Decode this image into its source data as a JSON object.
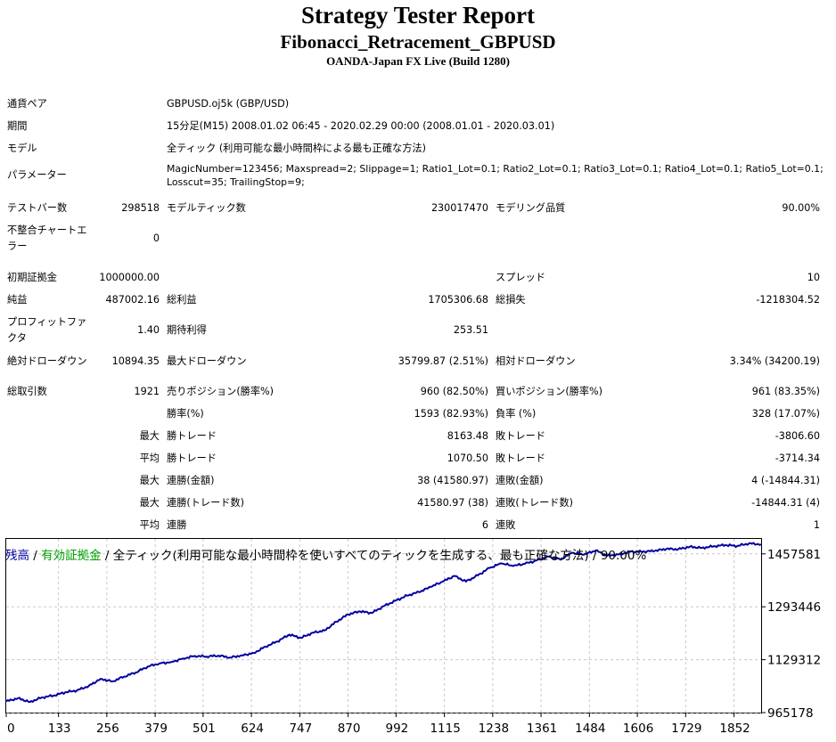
{
  "header": {
    "title": "Strategy Tester Report",
    "ea_name": "Fibonacci_Retracement_GBPUSD",
    "server": "OANDA-Japan FX Live (Build 1280)"
  },
  "settings": {
    "symbol": {
      "label": "通貨ペア",
      "value": "GBPUSD.oj5k (GBP/USD)"
    },
    "period": {
      "label": "期間",
      "value": "15分足(M15) 2008.01.02 06:45 - 2020.02.29 00:00 (2008.01.01 - 2020.03.01)"
    },
    "model": {
      "label": "モデル",
      "value": "全ティック (利用可能な最小時間枠による最も正確な方法)"
    },
    "parameters": {
      "label": "パラメーター",
      "line1": "MagicNumber=123456; Maxspread=2; Slippage=1; Ratio1_Lot=0.1; Ratio2_Lot=0.1; Ratio3_Lot=0.1; Ratio4_Lot=0.1; Ratio5_Lot=0.1;",
      "line2": "Losscut=35; TrailingStop=9;"
    }
  },
  "stats": {
    "bars": {
      "label": "テストバー数",
      "value": "298518"
    },
    "ticks": {
      "label": "モデルティック数",
      "value": "230017470"
    },
    "quality": {
      "label": "モデリング品質",
      "value": "90.00%"
    },
    "mismatch": {
      "label1": "不整合チャートエ",
      "label2": "ラー",
      "value": "0"
    },
    "deposit": {
      "label": "初期証拠金",
      "value": "1000000.00"
    },
    "spread": {
      "label": "スプレッド",
      "value": "10"
    },
    "net_profit": {
      "label": "純益",
      "value": "487002.16"
    },
    "gross_profit": {
      "label": "総利益",
      "value": "1705306.68"
    },
    "gross_loss": {
      "label": "総損失",
      "value": "-1218304.52"
    },
    "profit_factor": {
      "label1": "プロフィットファ",
      "label2": "クタ",
      "value": "1.40"
    },
    "expected_payoff": {
      "label": "期待利得",
      "value": "253.51"
    },
    "abs_drawdown": {
      "label": "絶対ドローダウン",
      "value": "10894.35"
    },
    "max_drawdown": {
      "label": "最大ドローダウン",
      "value": "35799.87 (2.51%)"
    },
    "rel_drawdown": {
      "label": "相対ドローダウン",
      "value": "3.34% (34200.19)"
    },
    "total_trades": {
      "label": "総取引数",
      "value": "1921"
    },
    "short_positions": {
      "label": "売りポジション(勝率%)",
      "value": "960 (82.50%)"
    },
    "long_positions": {
      "label": "買いポジション(勝率%)",
      "value": "961 (83.35%)"
    },
    "profit_trades": {
      "label": "勝率(%)",
      "value": "1593 (82.93%)"
    },
    "loss_trades": {
      "label": "負率 (%)",
      "value": "328 (17.07%)"
    },
    "largest_profit": {
      "prefix": "最大",
      "label": "勝トレード",
      "value": "8163.48"
    },
    "largest_loss": {
      "label": "敗トレード",
      "value": "-3806.60"
    },
    "average_profit": {
      "prefix": "平均",
      "label": "勝トレード",
      "value": "1070.50"
    },
    "average_loss": {
      "label": "敗トレード",
      "value": "-3714.34"
    },
    "max_consec_wins": {
      "prefix": "最大",
      "label": "連勝(金額)",
      "value": "38 (41580.97)"
    },
    "max_consec_losses": {
      "label": "連敗(金額)",
      "value": "4 (-14844.31)"
    },
    "max_consec_profit": {
      "prefix": "最大",
      "label": "連勝(トレード数)",
      "value": "41580.97 (38)"
    },
    "max_consec_loss": {
      "label": "連敗(トレード数)",
      "value": "-14844.31 (4)"
    },
    "avg_consec_wins": {
      "prefix": "平均",
      "label": "連勝",
      "value": "6"
    },
    "avg_consec_losses": {
      "label": "連敗",
      "value": "1"
    }
  },
  "chart_data": {
    "type": "line",
    "legend": {
      "balance": "残高",
      "sep1": " / ",
      "equity": "有効証拠金",
      "rest": " / 全ティック(利用可能な最小時間枠を使いすべてのティックを生成する、最も正確な方法) / 90.00%"
    },
    "x_ticks": [
      "0",
      "133",
      "256",
      "379",
      "501",
      "624",
      "747",
      "870",
      "992",
      "1115",
      "1238",
      "1361",
      "1484",
      "1606",
      "1729",
      "1852"
    ],
    "y_ticks": [
      "1457581",
      "1293446",
      "1129312",
      "965178"
    ],
    "xlim": [
      0,
      1921
    ],
    "ylim": [
      965178,
      1504000
    ],
    "grid": true,
    "colors": {
      "balance": "#0000a0",
      "equity": "#00a000",
      "grid": "#c8c8c8"
    },
    "series": [
      {
        "name": "残高",
        "x": [
          0,
          30,
          60,
          90,
          120,
          150,
          180,
          210,
          240,
          270,
          300,
          330,
          360,
          390,
          420,
          450,
          480,
          510,
          540,
          570,
          600,
          630,
          660,
          690,
          720,
          750,
          780,
          810,
          840,
          870,
          900,
          930,
          960,
          990,
          1020,
          1050,
          1080,
          1110,
          1140,
          1170,
          1200,
          1230,
          1260,
          1290,
          1320,
          1350,
          1380,
          1410,
          1440,
          1470,
          1500,
          1530,
          1560,
          1590,
          1620,
          1650,
          1680,
          1710,
          1740,
          1770,
          1800,
          1830,
          1860,
          1890,
          1921
        ],
        "values": [
          1000000,
          1010000,
          998000,
          1012000,
          1018000,
          1028000,
          1034000,
          1048000,
          1070000,
          1062000,
          1077000,
          1090000,
          1108000,
          1118000,
          1122000,
          1133000,
          1141000,
          1139000,
          1142000,
          1136000,
          1143000,
          1150000,
          1170000,
          1186000,
          1207000,
          1197000,
          1213000,
          1220000,
          1247000,
          1270000,
          1279000,
          1274000,
          1295000,
          1312000,
          1328000,
          1339000,
          1355000,
          1371000,
          1389000,
          1372000,
          1391000,
          1414000,
          1428000,
          1420000,
          1427000,
          1437000,
          1449000,
          1440000,
          1461000,
          1455000,
          1468000,
          1452000,
          1456000,
          1465000,
          1464000,
          1467000,
          1473000,
          1472000,
          1480000,
          1476000,
          1481000,
          1485000,
          1482000,
          1490000,
          1487000
        ]
      }
    ]
  }
}
